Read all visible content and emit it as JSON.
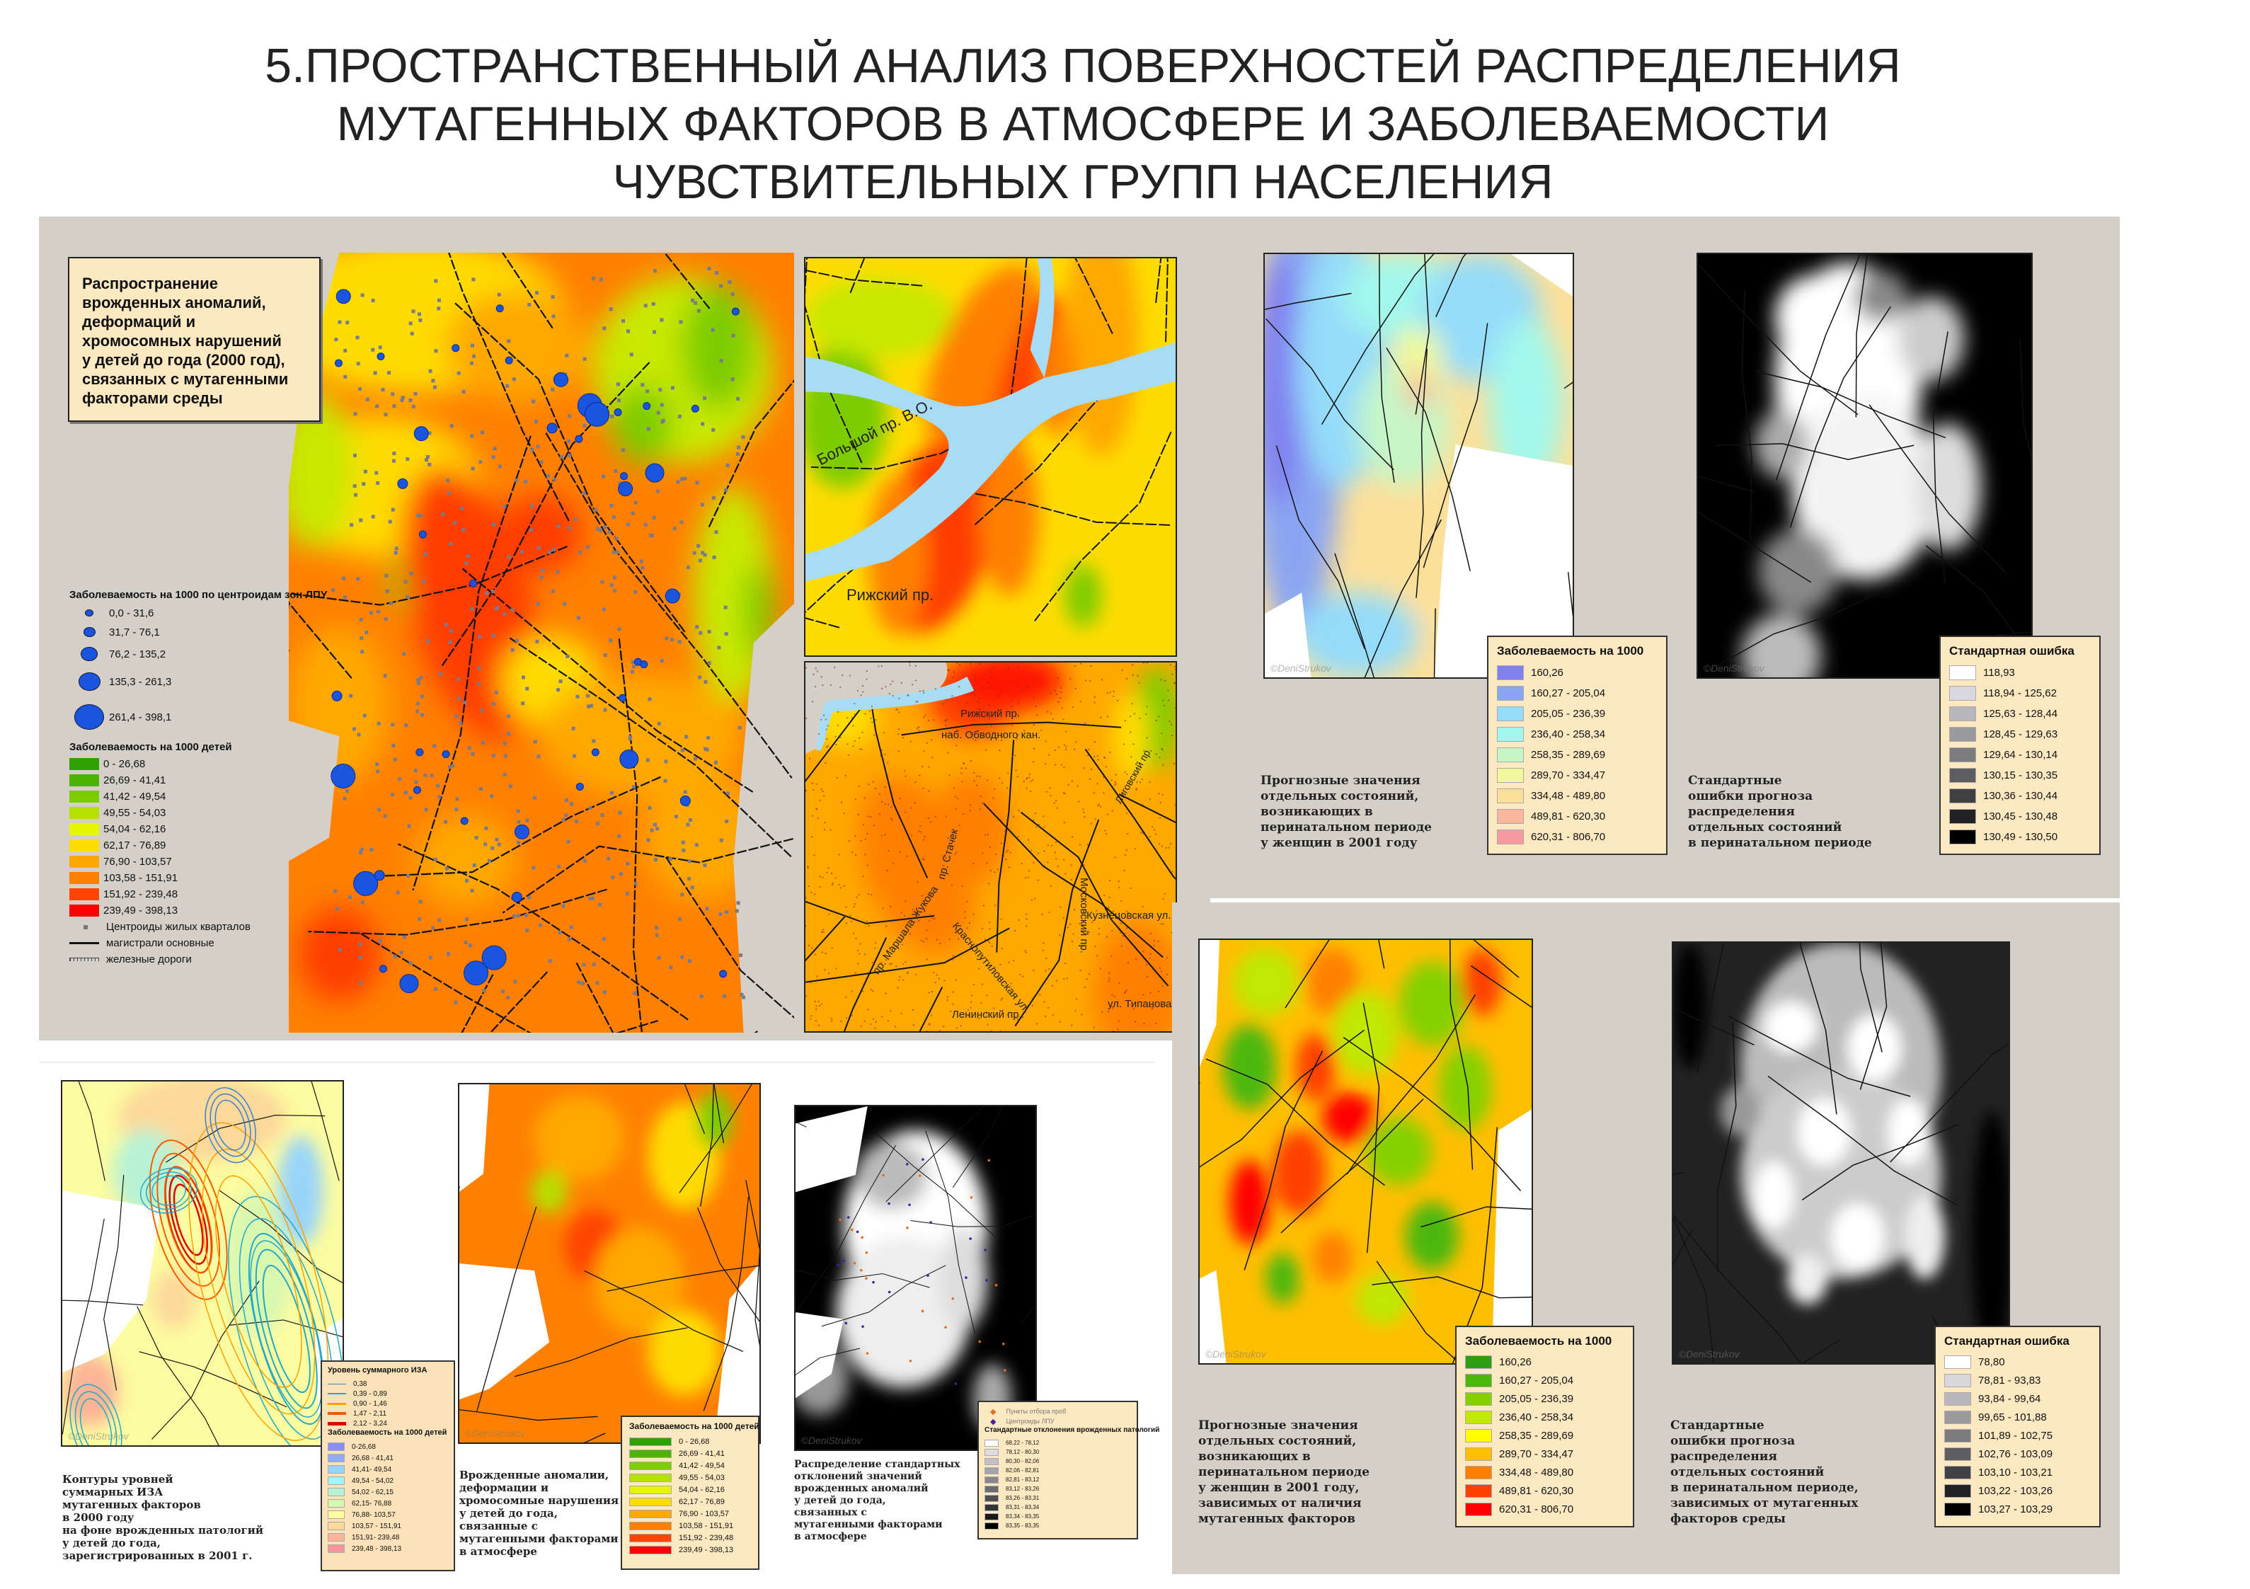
{
  "title": {
    "line1": "5.ПРОСТРАНСТВЕННЫЙ АНАЛИЗ ПОВЕРХНОСТЕЙ РАСПРЕДЕЛЕНИЯ",
    "line2": "МУТАГЕННЫХ  ФАКТОРОВ В АТМОСФЕРЕ И ЗАБОЛЕВАЕМОСТИ",
    "line3": "ЧУВСТВИТЕЛЬНЫХ ГРУПП  НАСЕЛЕНИЯ"
  },
  "main_map": {
    "description": "Распространение\nврожденных аномалий,\nдеформаций и\nхромосомных нарушений\nу детей до года (2000 год),\nсвязанных с мутагенными\nфакторами среды",
    "circles_legend": {
      "title": "Заболеваемость на 1000 по центроидам зон ЛПУ",
      "items": [
        "0,0 - 31,6",
        "31,7 - 76,1",
        "76,2 - 135,2",
        "135,3 - 261,3",
        "261,4 - 398,1"
      ],
      "color": "#1a55e0"
    },
    "surface_legend": {
      "title": "Заболеваемость на 1000 детей",
      "items": [
        {
          "label": "0 - 26,68",
          "color": "#2ea100"
        },
        {
          "label": "26,69 - 41,41",
          "color": "#4db300"
        },
        {
          "label": "41,42 - 49,54",
          "color": "#7dcc00"
        },
        {
          "label": "49,55 - 54,03",
          "color": "#b5e000"
        },
        {
          "label": "54,04 - 62,16",
          "color": "#e6f500"
        },
        {
          "label": "62,17 - 76,89",
          "color": "#ffdc00"
        },
        {
          "label": "76,90 - 103,57",
          "color": "#ffa800"
        },
        {
          "label": "103,58 - 151,91",
          "color": "#ff7f00"
        },
        {
          "label": "151,92 - 239,48",
          "color": "#ff4500"
        },
        {
          "label": "239,49 - 398,13",
          "color": "#ff0000"
        }
      ]
    },
    "symbols": {
      "centroids": "Центроиды жилых кварталов",
      "roads": "магистрали основные",
      "railways": "железные дороги"
    }
  },
  "inset_top": {
    "labels": [
      "Большой пр. В.О.",
      "Рижский пр."
    ]
  },
  "inset_bottom": {
    "labels": [
      "Рижский пр.",
      "наб. Обводного кан.",
      "пр. Стачек",
      "Московский пр.",
      "Кузнецовская ул.",
      "Краснопутиловская ул.",
      "пр. Маршала Жукова",
      "Ленинский пр.",
      "ул. Типанова",
      "Лиговский пр."
    ]
  },
  "perinatal_2001": {
    "map_caption": "Прогнозные значения\nотдельных состояний,\nвозникающих в\nперинатальном периоде\nу женщин в 2001 году",
    "legend": {
      "title": "Заболеваемость на 1000",
      "items": [
        {
          "label": "160,26",
          "color": "#8080f0"
        },
        {
          "label": "160,27 - 205,04",
          "color": "#8aa6f2"
        },
        {
          "label": "205,05 - 236,39",
          "color": "#94dcfa"
        },
        {
          "label": "236,40 - 258,34",
          "color": "#a2f8ec"
        },
        {
          "label": "258,35 - 289,69",
          "color": "#c6f6c6"
        },
        {
          "label": "289,70 - 334,47",
          "color": "#f0fa9a"
        },
        {
          "label": "334,48 - 489,80",
          "color": "#fce09a"
        },
        {
          "label": "489,81 - 620,30",
          "color": "#f9b69a"
        },
        {
          "label": "620,31 - 806,70",
          "color": "#f79aa0"
        }
      ]
    },
    "error_caption": "Стандартные\nошибки прогноза\nраспределения\nотдельных состояний\nв перинатальном периоде",
    "error_legend": {
      "title": "Стандартная ошибка",
      "items": [
        {
          "label": "118,93",
          "color": "#ffffff"
        },
        {
          "label": "118,94 - 125,62",
          "color": "#d8d8de"
        },
        {
          "label": "125,63 - 128,44",
          "color": "#b8b8bc"
        },
        {
          "label": "128,45 - 129,63",
          "color": "#9a9a9c"
        },
        {
          "label": "129,64 - 130,14",
          "color": "#7c7c7e"
        },
        {
          "label": "130,15 - 130,35",
          "color": "#5e5e60"
        },
        {
          "label": "130,36 - 130,44",
          "color": "#404042"
        },
        {
          "label": "130,45 - 130,48",
          "color": "#222224"
        },
        {
          "label": "130,49 - 130,50",
          "color": "#000000"
        }
      ]
    }
  },
  "perinatal_mutagenic": {
    "map_caption": "Прогнозные значения\nотдельных состояний,\nвозникающих в\nперинатальном периоде\nу женщин в 2001 году,\nзависимых от наличия\nмутагенных факторов",
    "legend": {
      "title": "Заболеваемость на 1000",
      "items": [
        {
          "label": "160,26",
          "color": "#2e9e14"
        },
        {
          "label": "160,27 - 205,04",
          "color": "#4cb80a"
        },
        {
          "label": "205,05 - 236,39",
          "color": "#86d000"
        },
        {
          "label": "236,40 - 258,34",
          "color": "#c0e800"
        },
        {
          "label": "258,35 - 289,69",
          "color": "#ffff00"
        },
        {
          "label": "289,70 - 334,47",
          "color": "#ffbe00"
        },
        {
          "label": "334,48 - 489,80",
          "color": "#ff8000"
        },
        {
          "label": "489,81 - 620,30",
          "color": "#ff4000"
        },
        {
          "label": "620,31 - 806,70",
          "color": "#ff0000"
        }
      ]
    },
    "error_caption": "Стандартные\nошибки прогноза\nраспределения\nотдельных состояний\nв перинатальном периоде,\nзависимых от мутагенных\nфакторов среды",
    "error_legend": {
      "title": "Стандартная ошибка",
      "items": [
        {
          "label": "78,80",
          "color": "#ffffff"
        },
        {
          "label": "78,81 - 93,83",
          "color": "#d8d8dc"
        },
        {
          "label": "93,84 - 99,64",
          "color": "#b8b8bc"
        },
        {
          "label": "99,65 - 101,88",
          "color": "#9a9a9c"
        },
        {
          "label": "101,89 - 102,75",
          "color": "#7c7c7e"
        },
        {
          "label": "102,76 - 103,09",
          "color": "#5e5e60"
        },
        {
          "label": "103,10 - 103,21",
          "color": "#404042"
        },
        {
          "label": "103,22 - 103,26",
          "color": "#222224"
        },
        {
          "label": "103,27 - 103,29",
          "color": "#000000"
        }
      ]
    }
  },
  "contours_map": {
    "caption": "Контуры уровней\nсуммарных  ИЗА\nмутагенных факторов\nв 2000 году\nна фоне врожденных патологий\nу детей до года,\nзарегистрированных в 2001 г.",
    "lines_legend": {
      "title": "Уровень суммарного ИЗА",
      "items": [
        {
          "label": "0,38",
          "color": "#3a7fd0"
        },
        {
          "label": "0,39 - 0,89",
          "color": "#22a8c8"
        },
        {
          "label": "0,90 - 1,46",
          "color": "#ffa000"
        },
        {
          "label": "1,47 - 2,11",
          "color": "#ff5a00"
        },
        {
          "label": "2,12 - 3,24",
          "color": "#e00000"
        }
      ]
    },
    "legend": {
      "title": "Заболеваемость на 1000 детей",
      "items": [
        {
          "label": "0-26,68",
          "color": "#8c8cf5"
        },
        {
          "label": "26,68 - 41,41",
          "color": "#90acf5"
        },
        {
          "label": "41,41- 49,54",
          "color": "#98d4fa"
        },
        {
          "label": "49,54 - 54,02",
          "color": "#a0f4fa"
        },
        {
          "label": "54,02 - 62,15",
          "color": "#b8f2d4"
        },
        {
          "label": "62,15- 76,88",
          "color": "#d8f8b0"
        },
        {
          "label": "76,88- 103,57",
          "color": "#fcfca0"
        },
        {
          "label": "103,57 - 151,91",
          "color": "#fcd89a"
        },
        {
          "label": "151,91- 239,48",
          "color": "#fbb496"
        },
        {
          "label": "239,48 - 398,13",
          "color": "#f7949c"
        }
      ]
    }
  },
  "anomalies_map": {
    "caption": "Врожденные аномалии,\nдеформации и\nхромосомные нарушения\nу детей до года,\nсвязанные с\nмутагенными факторами\nв атмосфере",
    "legend": {
      "title": "Заболеваемость на 1000 детей",
      "items": [
        {
          "label": "0 - 26,68",
          "color": "#2ea100"
        },
        {
          "label": "26,69 - 41,41",
          "color": "#4db300"
        },
        {
          "label": "41,42 - 49,54",
          "color": "#7dcc00"
        },
        {
          "label": "49,55 - 54,03",
          "color": "#b5e000"
        },
        {
          "label": "54,04 - 62,16",
          "color": "#e6f500"
        },
        {
          "label": "62,17 - 76,89",
          "color": "#ffdc00"
        },
        {
          "label": "76,90 - 103,57",
          "color": "#ffa800"
        },
        {
          "label": "103,58 - 151,91",
          "color": "#ff7f00"
        },
        {
          "label": "151,92 - 239,48",
          "color": "#ff4500"
        },
        {
          "label": "239,49 - 398,13",
          "color": "#ff0000"
        }
      ]
    }
  },
  "deviation_map": {
    "caption": "Распределение стандартных\nотклонений значений\nврожденных аномалий\nу детей до года,\nсвязанных с\nмутагенными факторами\nв атмосфере",
    "points": [
      {
        "label": "Пункты отбора проб",
        "color": "#e07020"
      },
      {
        "label": "Центроиды ЛПУ",
        "color": "#4020a0"
      }
    ],
    "legend": {
      "title": "Стандартные отклонения врожденных патологий",
      "items": [
        {
          "label": "68,22 - 78,12",
          "color": "#ffffff"
        },
        {
          "label": "78,12 - 80,30",
          "color": "#dcdce0"
        },
        {
          "label": "80,30 - 82,06",
          "color": "#c0c0c6"
        },
        {
          "label": "82,06 - 82,81",
          "color": "#a4a4a8"
        },
        {
          "label": "82,81 - 83,12",
          "color": "#88888c"
        },
        {
          "label": "83,12 - 83,26",
          "color": "#6c6c70"
        },
        {
          "label": "83,26 - 83,31",
          "color": "#505054"
        },
        {
          "label": "83,31 - 83,34",
          "color": "#343436"
        },
        {
          "label": "83,34 - 83,35",
          "color": "#1a1a1a"
        },
        {
          "label": "83,35 - 83,35",
          "color": "#000000"
        }
      ]
    }
  },
  "watermark": "©DeniStrukov"
}
